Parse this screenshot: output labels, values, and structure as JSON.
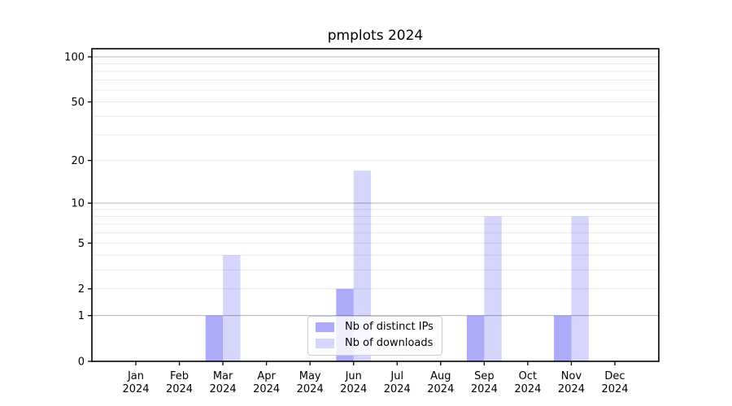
{
  "chart_data": {
    "type": "bar",
    "title": "pmplots 2024",
    "categories": [
      "Jan",
      "Feb",
      "Mar",
      "Apr",
      "May",
      "Jun",
      "Jul",
      "Aug",
      "Sep",
      "Oct",
      "Nov",
      "Dec"
    ],
    "x_year_label": "2024",
    "series": [
      {
        "name": "Nb of distinct IPs",
        "color": "#0000ee54",
        "values": [
          0,
          0,
          1,
          0,
          0,
          2,
          0,
          0,
          1,
          0,
          1,
          0
        ]
      },
      {
        "name": "Nb of downloads",
        "color": "#0000ee29",
        "values": [
          0,
          0,
          4,
          0,
          0,
          17,
          0,
          0,
          8,
          0,
          8,
          0
        ]
      }
    ],
    "xlabel": "",
    "ylabel": "",
    "yscale": "log1p",
    "ylim": [
      0,
      113
    ],
    "y_tick_values": [
      0,
      1,
      2,
      5,
      10,
      20,
      50,
      100
    ],
    "y_tick_labels": [
      "0",
      "1",
      "2",
      "5",
      "10",
      "20",
      "50",
      "100"
    ],
    "y_major_gridlines": [
      1,
      10,
      100
    ],
    "y_minor_gridlines": [
      2,
      3,
      4,
      5,
      6,
      7,
      8,
      9,
      20,
      30,
      40,
      50,
      60,
      70,
      80,
      90
    ],
    "grid": true,
    "legend_position": "lower center",
    "colors": {
      "major_grid": "#b3b3b3",
      "minor_grid": "#e8e8e8",
      "axis": "#000000",
      "text": "#000000",
      "background": "#ffffff"
    }
  }
}
